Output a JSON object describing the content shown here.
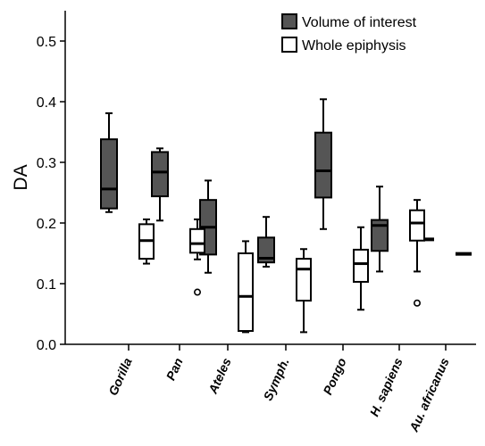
{
  "chart_data": {
    "type": "box",
    "ylabel": "DA",
    "ylim": [
      0,
      0.55
    ],
    "yticks": [
      "0.0",
      "0.1",
      "0.2",
      "0.3",
      "0.4",
      "0.5"
    ],
    "categories": [
      "Gorilla",
      "Pan",
      "Ateles",
      "Symph.",
      "Pongo",
      "H. sapiens",
      "Au. africanus"
    ],
    "legend": {
      "placement": "top-right",
      "entries": [
        {
          "name": "Volume of interest",
          "color": "#555555"
        },
        {
          "name": "Whole epiphysis",
          "color": "#ffffff"
        }
      ]
    },
    "series": [
      {
        "name": "Volume of interest",
        "color": "#555555",
        "boxes": [
          {
            "category": "Gorilla",
            "min": 0.218,
            "q1": 0.224,
            "median": 0.256,
            "q3": 0.338,
            "max": 0.381
          },
          {
            "category": "Pan",
            "min": 0.204,
            "q1": 0.244,
            "median": 0.284,
            "q3": 0.317,
            "max": 0.323
          },
          {
            "category": "Ateles",
            "min": 0.118,
            "q1": 0.148,
            "median": 0.193,
            "q3": 0.238,
            "max": 0.27
          },
          {
            "category": "Symph.",
            "min": 0.128,
            "q1": 0.135,
            "median": 0.142,
            "q3": 0.176,
            "max": 0.21
          },
          {
            "category": "Pongo",
            "min": 0.19,
            "q1": 0.242,
            "median": 0.286,
            "q3": 0.349,
            "max": 0.404
          },
          {
            "category": "H. sapiens",
            "min": 0.12,
            "q1": 0.154,
            "median": 0.196,
            "q3": 0.205,
            "max": 0.26
          },
          {
            "category": "Au. africanus",
            "value": 0.173
          }
        ]
      },
      {
        "name": "Whole epiphysis",
        "color": "#ffffff",
        "boxes": [
          {
            "category": "Gorilla",
            "min": 0.133,
            "q1": 0.141,
            "median": 0.171,
            "q3": 0.198,
            "max": 0.206
          },
          {
            "category": "Pan",
            "min": 0.14,
            "q1": 0.151,
            "median": 0.166,
            "q3": 0.19,
            "max": 0.206,
            "outliers": [
              0.086
            ]
          },
          {
            "category": "Ateles",
            "min": 0.02,
            "q1": 0.022,
            "median": 0.079,
            "q3": 0.15,
            "max": 0.17
          },
          {
            "category": "Symph.",
            "min": 0.02,
            "q1": 0.072,
            "median": 0.124,
            "q3": 0.141,
            "max": 0.157
          },
          {
            "category": "Pongo",
            "min": 0.057,
            "q1": 0.103,
            "median": 0.133,
            "q3": 0.156,
            "max": 0.193
          },
          {
            "category": "H. sapiens",
            "min": 0.12,
            "q1": 0.171,
            "median": 0.2,
            "q3": 0.221,
            "max": 0.238,
            "outliers": [
              0.068
            ]
          },
          {
            "category": "Au. africanus",
            "value": 0.149
          }
        ]
      }
    ]
  }
}
